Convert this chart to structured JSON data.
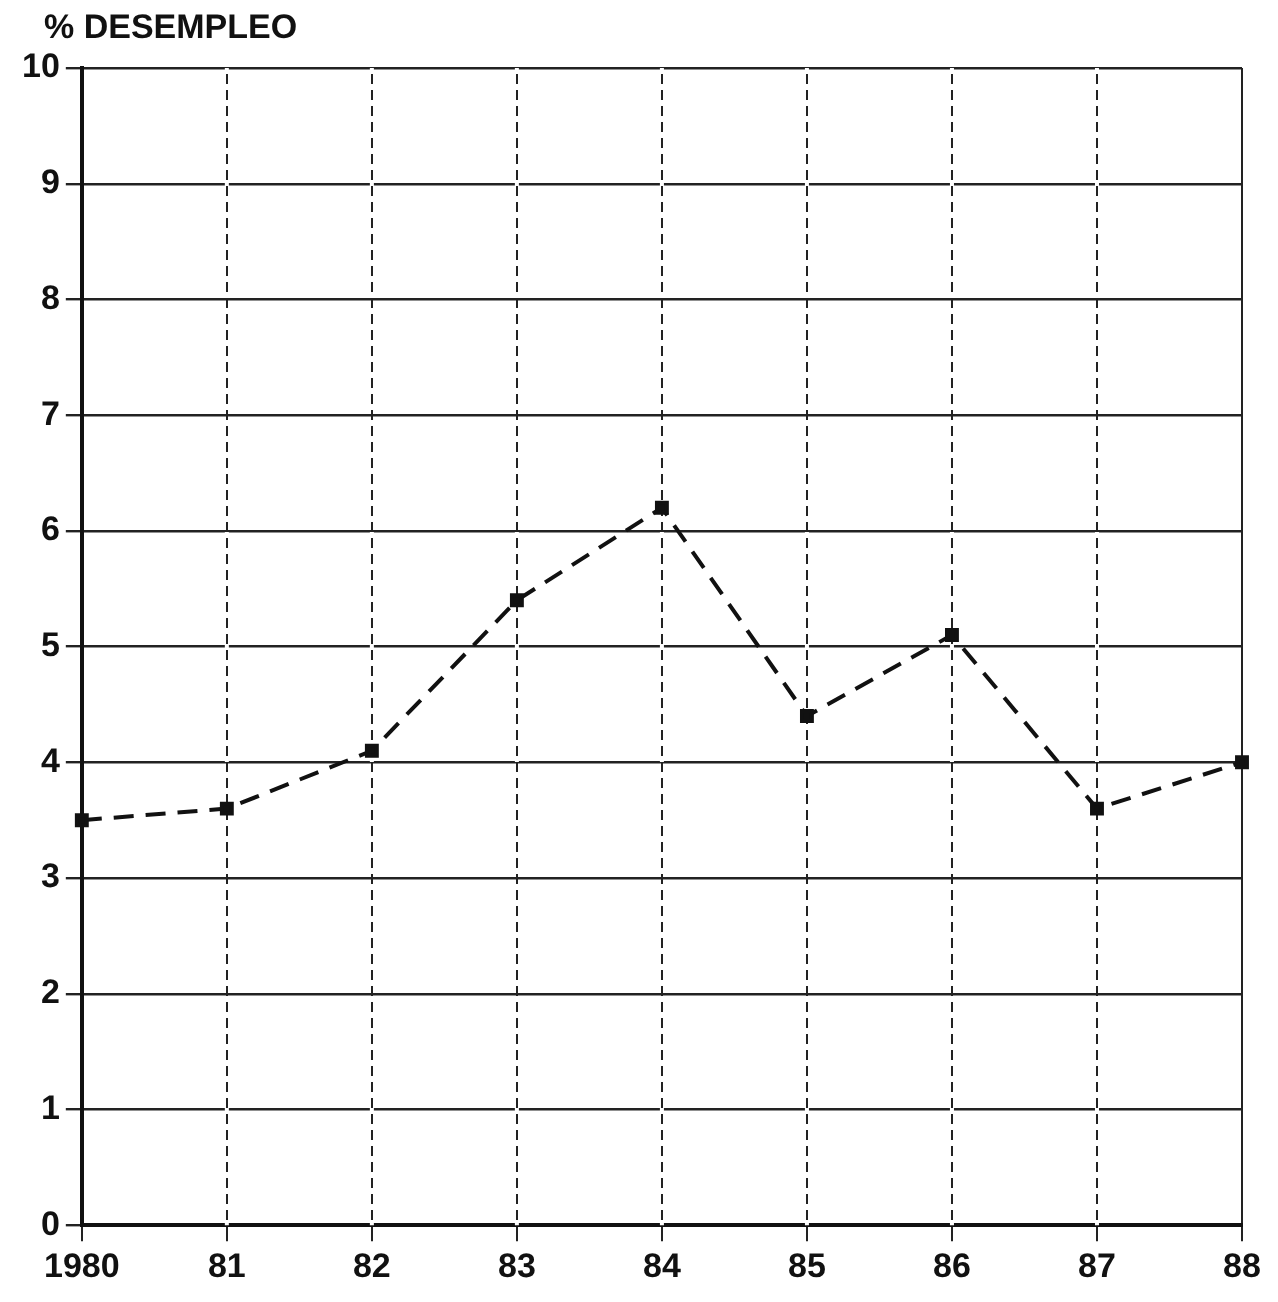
{
  "chart_data": {
    "type": "line",
    "ylabel": "% DESEMPLEO",
    "categories": [
      "1980",
      "81",
      "82",
      "83",
      "84",
      "85",
      "86",
      "87",
      "88"
    ],
    "series": [
      {
        "color": "#111111",
        "values": [
          3.5,
          3.6,
          4.1,
          5.4,
          6.2,
          4.4,
          5.1,
          3.6,
          4.0
        ]
      }
    ],
    "ylim": [
      0,
      10
    ],
    "yticks": [
      0,
      1,
      2,
      3,
      4,
      5,
      6,
      7,
      8,
      9,
      10
    ],
    "grid": true,
    "legend": false,
    "marker": "square",
    "line_style": "dashed"
  }
}
